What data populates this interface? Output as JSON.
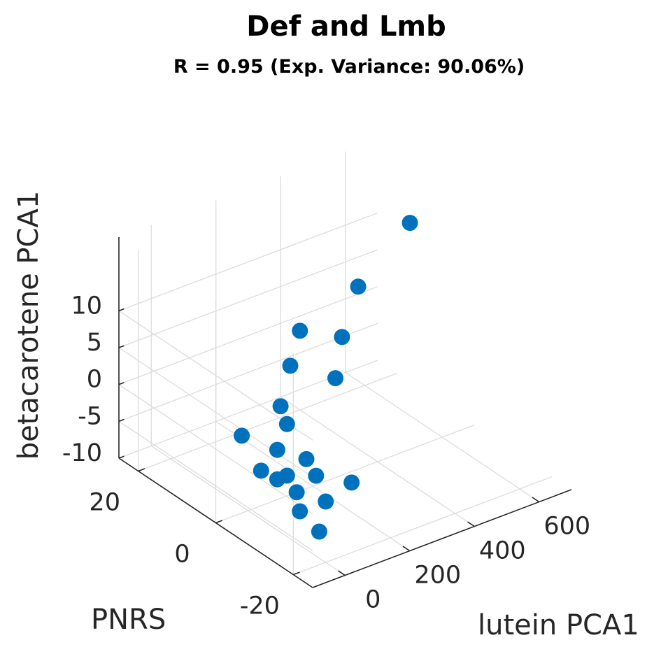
{
  "chart_data": {
    "type": "scatter",
    "title": "Def and Lmb",
    "subtitle": "R = 0.95 (Exp. Variance: 90.06%)",
    "xlabel": "lutein PCA1",
    "ylabel": "PNRS",
    "zlabel": "betacarotene PCA1",
    "x_ticks": [
      "0",
      "200",
      "400",
      "600"
    ],
    "y_ticks": [
      "-20",
      "0",
      "20"
    ],
    "z_ticks": [
      "-10",
      "-5",
      "0",
      "5",
      "10"
    ],
    "xlim": [
      -100,
      700
    ],
    "ylim": [
      -25,
      25
    ],
    "zlim": [
      -10,
      20
    ],
    "grid": true,
    "marker_color": "#0072BD",
    "points": [
      {
        "x": 560,
        "y": 5,
        "z": 18
      },
      {
        "x": 400,
        "y": 5,
        "z": 12
      },
      {
        "x": 220,
        "y": 5,
        "z": 9
      },
      {
        "x": 350,
        "y": 5,
        "z": 6
      },
      {
        "x": 150,
        "y": -10,
        "z": 9
      },
      {
        "x": 250,
        "y": 10,
        "z": 2
      },
      {
        "x": 180,
        "y": 5,
        "z": -3
      },
      {
        "x": 150,
        "y": 5,
        "z": -6
      },
      {
        "x": 220,
        "y": 10,
        "z": -3
      },
      {
        "x": 180,
        "y": 0,
        "z": -6
      },
      {
        "x": 150,
        "y": -5,
        "z": -6
      },
      {
        "x": 200,
        "y": -10,
        "z": -6
      },
      {
        "x": 100,
        "y": 5,
        "z": -8
      },
      {
        "x": 100,
        "y": 10,
        "z": -5
      },
      {
        "x": 150,
        "y": 5,
        "z": -10
      },
      {
        "x": 150,
        "y": 0,
        "z": -10
      },
      {
        "x": 180,
        "y": 5,
        "z": -10
      },
      {
        "x": 180,
        "y": -5,
        "z": -10
      },
      {
        "x": 100,
        "y": -5,
        "z": -10
      },
      {
        "x": 100,
        "y": -10,
        "z": -11
      }
    ]
  }
}
